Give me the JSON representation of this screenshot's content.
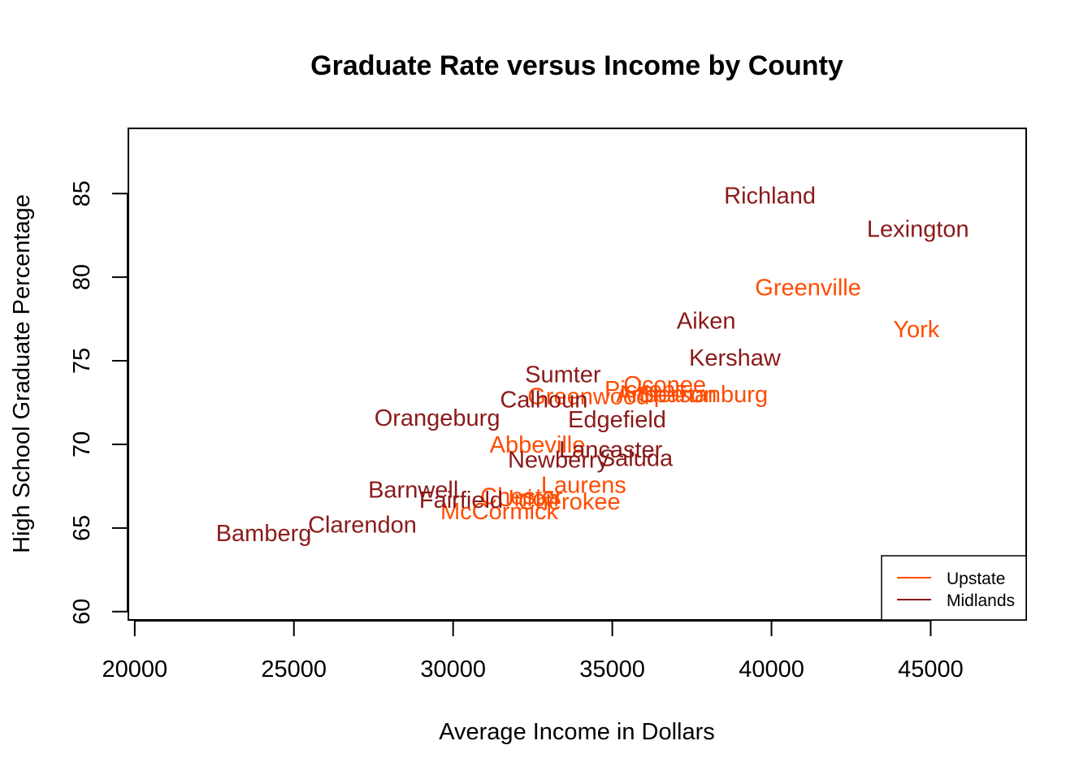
{
  "chart_data": {
    "type": "scatter",
    "title": "Graduate Rate versus Income by County",
    "xlabel": "Average Income in Dollars",
    "ylabel": "High School Graduate Percentage",
    "xlim": [
      19800,
      48000
    ],
    "ylim": [
      59.5,
      88.9
    ],
    "xticks": [
      20000,
      25000,
      30000,
      35000,
      40000,
      45000
    ],
    "yticks": [
      60,
      65,
      70,
      75,
      80,
      85
    ],
    "grid": false,
    "legend": {
      "placement": "bottom-right",
      "entries": [
        {
          "label": "Upstate",
          "color": "#ff4c00"
        },
        {
          "label": "Midlands",
          "color": "#8b1a1a"
        }
      ]
    },
    "series": [
      {
        "name": "Upstate",
        "color": "#ff4c00",
        "points": [
          {
            "label": "Greenville",
            "x": 41150,
            "y": 79.4
          },
          {
            "label": "York",
            "x": 44550,
            "y": 76.9
          },
          {
            "label": "Oconee",
            "x": 36650,
            "y": 73.6
          },
          {
            "label": "Pickens",
            "x": 36050,
            "y": 73.3
          },
          {
            "label": "Anderson",
            "x": 36700,
            "y": 73.0
          },
          {
            "label": "Spartanburg",
            "x": 37850,
            "y": 73.0
          },
          {
            "label": "Greenwood",
            "x": 34250,
            "y": 72.9
          },
          {
            "label": "Abbeville",
            "x": 32650,
            "y": 70.0
          },
          {
            "label": "Laurens",
            "x": 34100,
            "y": 67.6
          },
          {
            "label": "Cherokee",
            "x": 33650,
            "y": 66.6
          },
          {
            "label": "Union",
            "x": 32350,
            "y": 66.8
          },
          {
            "label": "Chester",
            "x": 32150,
            "y": 66.9
          },
          {
            "label": "McCormick",
            "x": 31450,
            "y": 66.0
          }
        ]
      },
      {
        "name": "Midlands",
        "color": "#8b1a1a",
        "points": [
          {
            "label": "Richland",
            "x": 39950,
            "y": 84.9
          },
          {
            "label": "Lexington",
            "x": 44600,
            "y": 82.9
          },
          {
            "label": "Aiken",
            "x": 37950,
            "y": 77.4
          },
          {
            "label": "Kershaw",
            "x": 38850,
            "y": 75.2
          },
          {
            "label": "Sumter",
            "x": 33450,
            "y": 74.2
          },
          {
            "label": "Calhoun",
            "x": 32850,
            "y": 72.7
          },
          {
            "label": "Edgefield",
            "x": 35150,
            "y": 71.5
          },
          {
            "label": "Orangeburg",
            "x": 29500,
            "y": 71.6
          },
          {
            "label": "Lancaster",
            "x": 34950,
            "y": 69.7
          },
          {
            "label": "Saluda",
            "x": 35750,
            "y": 69.2
          },
          {
            "label": "Newberry",
            "x": 33300,
            "y": 69.1
          },
          {
            "label": "Barnwell",
            "x": 28750,
            "y": 67.3
          },
          {
            "label": "Fairfield",
            "x": 30250,
            "y": 66.7
          },
          {
            "label": "Clarendon",
            "x": 27150,
            "y": 65.2
          },
          {
            "label": "Bamberg",
            "x": 24050,
            "y": 64.7
          }
        ]
      }
    ]
  }
}
